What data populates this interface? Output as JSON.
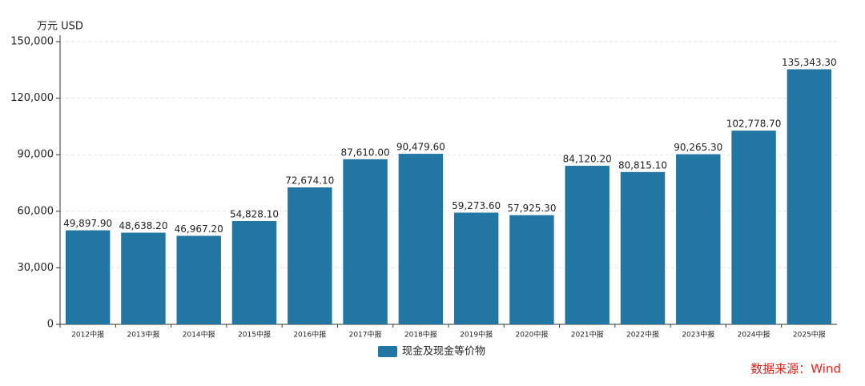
{
  "chart_data": {
    "type": "bar",
    "y_axis_label": "万元  USD",
    "source": "数据来源：Wind",
    "categories": [
      "2012中报",
      "2013中报",
      "2014中报",
      "2015中报",
      "2016中报",
      "2017中报",
      "2018中报",
      "2019中报",
      "2020中报",
      "2021中报",
      "2022中报",
      "2023中报",
      "2024中报",
      "2025中报"
    ],
    "series": [
      {
        "name": "现金及现金等价物",
        "color": "#2276a4",
        "values": [
          49897.9,
          48638.2,
          46967.2,
          54828.1,
          72674.1,
          87610.0,
          90479.6,
          59273.6,
          57925.3,
          84120.2,
          80815.1,
          90265.3,
          102778.7,
          135343.3
        ],
        "value_labels": [
          "49,897.90",
          "48,638.20",
          "46,967.20",
          "54,828.10",
          "72,674.10",
          "87,610.00",
          "90,479.60",
          "59,273.60",
          "57,925.30",
          "84,120.20",
          "80,815.10",
          "90,265.30",
          "102,778.70",
          "135,343.30"
        ]
      }
    ],
    "ylim": [
      0,
      150000
    ],
    "yticks": [
      0,
      {
        "value": 30000,
        "label": "30,000"
      },
      {
        "value": 60000,
        "label": "60,000"
      },
      {
        "value": 90000,
        "label": "90,000"
      },
      {
        "value": 120000,
        "label": "120,000"
      },
      {
        "value": 150000,
        "label": "150,000"
      }
    ],
    "grid": true
  }
}
